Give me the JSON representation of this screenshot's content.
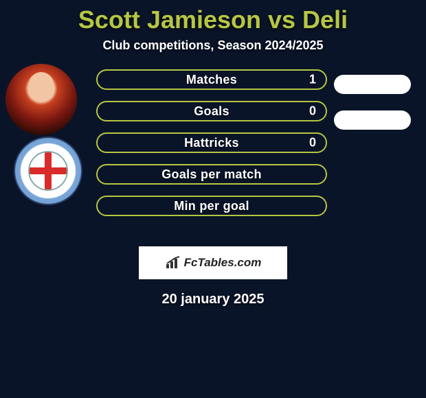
{
  "header": {
    "title": "Scott Jamieson vs Deli",
    "title_color": "#b6c642",
    "title_fontsize": 36,
    "subtitle": "Club competitions, Season 2024/2025",
    "subtitle_fontsize": 18,
    "subtitle_color": "#ffffff"
  },
  "stats": {
    "bar_bg": "#0a1428",
    "bar_border": "#b6c642",
    "label_color": "#ffffff",
    "rows": [
      {
        "label": "Matches",
        "value": "1"
      },
      {
        "label": "Goals",
        "value": "0"
      },
      {
        "label": "Hattricks",
        "value": "0"
      },
      {
        "label": "Goals per match",
        "value": ""
      },
      {
        "label": "Min per goal",
        "value": ""
      }
    ]
  },
  "branding": {
    "text": "FcTables.com",
    "icon_name": "bars-icon"
  },
  "footer": {
    "date": "20 january 2025"
  },
  "colors": {
    "page_bg": "#0a1428",
    "accent": "#b6c642",
    "pill_bg": "#ffffff"
  }
}
